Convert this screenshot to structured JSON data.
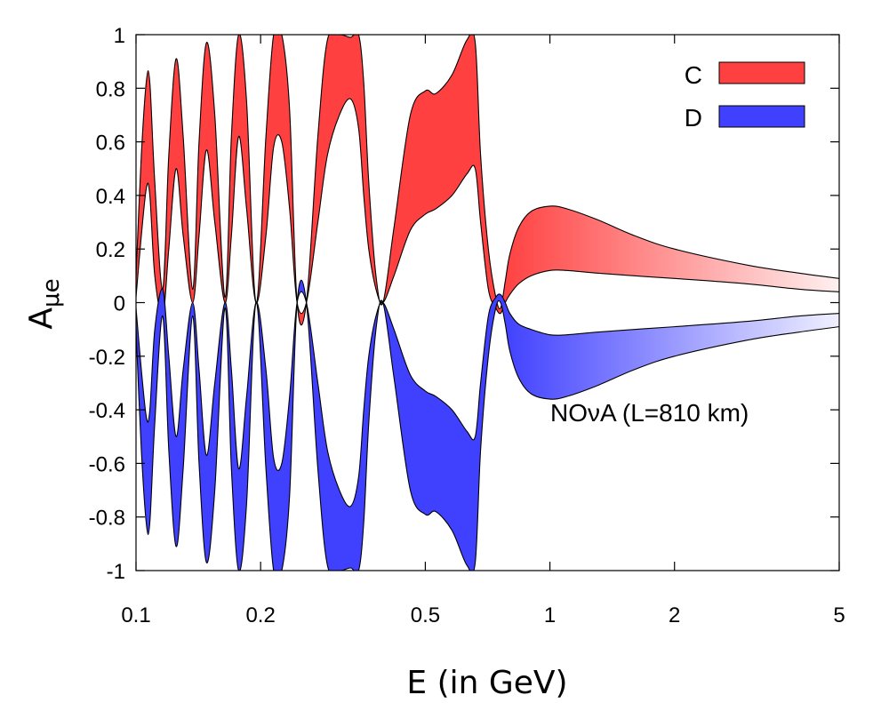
{
  "chart_data": {
    "type": "area",
    "xlabel": "E (in GeV)",
    "ylabel_main": "A",
    "ylabel_sub": "μe",
    "xscale": "log",
    "xlim": [
      0.1,
      5
    ],
    "ylim": [
      -1,
      1
    ],
    "xticks": [
      {
        "value": 0.1,
        "label": "0.1"
      },
      {
        "value": 0.2,
        "label": "0.2"
      },
      {
        "value": 0.5,
        "label": "0.5"
      },
      {
        "value": 1,
        "label": "1"
      },
      {
        "value": 2,
        "label": "2"
      },
      {
        "value": 5,
        "label": "5"
      }
    ],
    "yticks": [
      {
        "value": 1,
        "label": "1"
      },
      {
        "value": 0.8,
        "label": "0.8"
      },
      {
        "value": 0.6,
        "label": "0.6"
      },
      {
        "value": 0.4,
        "label": "0.4"
      },
      {
        "value": 0.2,
        "label": "0.2"
      },
      {
        "value": 0,
        "label": "0"
      },
      {
        "value": -0.2,
        "label": "-0.2"
      },
      {
        "value": -0.4,
        "label": "-0.4"
      },
      {
        "value": -0.6,
        "label": "-0.6"
      },
      {
        "value": -0.8,
        "label": "-0.8"
      },
      {
        "value": -1,
        "label": "-1"
      }
    ],
    "grid": false,
    "legend_position": "top-right",
    "annotation": "NOνA (L=810 km)",
    "series": [
      {
        "name": "C",
        "color": "#ff4040",
        "x": [
          0.1,
          0.103,
          0.106,
          0.108,
          0.111,
          0.116,
          0.12,
          0.125,
          0.13,
          0.137,
          0.142,
          0.148,
          0.155,
          0.164,
          0.17,
          0.177,
          0.185,
          0.195,
          0.206,
          0.215,
          0.225,
          0.235,
          0.245,
          0.258,
          0.275,
          0.29,
          0.31,
          0.33,
          0.345,
          0.355,
          0.365,
          0.38,
          0.395,
          0.42,
          0.46,
          0.5,
          0.53,
          0.58,
          0.63,
          0.66,
          0.68,
          0.71,
          0.74,
          0.76,
          0.78,
          0.8,
          0.84,
          0.9,
          1.0,
          1.1,
          1.3,
          1.6,
          2.0,
          3.0,
          4.0,
          5.0
        ],
        "upper": [
          0.1,
          0.55,
          0.83,
          0.82,
          0.45,
          0.05,
          0.55,
          0.91,
          0.62,
          0.05,
          0.6,
          0.97,
          0.7,
          0.02,
          0.62,
          1.0,
          0.75,
          0.0,
          0.62,
          1.0,
          1.0,
          0.72,
          0.0,
          0.0,
          0.62,
          0.98,
          1.0,
          0.99,
          1.0,
          0.82,
          0.45,
          0.1,
          0.0,
          0.28,
          0.7,
          0.79,
          0.78,
          0.85,
          0.98,
          0.97,
          0.55,
          0.2,
          0.02,
          -0.02,
          0.08,
          0.18,
          0.28,
          0.34,
          0.36,
          0.35,
          0.31,
          0.25,
          0.2,
          0.14,
          0.11,
          0.09
        ],
        "lower": [
          0.02,
          0.25,
          0.43,
          0.4,
          0.1,
          -0.05,
          0.2,
          0.5,
          0.25,
          0.0,
          0.25,
          0.57,
          0.3,
          0.0,
          0.25,
          0.62,
          0.35,
          0.0,
          0.25,
          0.58,
          0.6,
          0.35,
          0.0,
          0.0,
          0.3,
          0.55,
          0.7,
          0.76,
          0.65,
          0.4,
          0.2,
          0.05,
          0.0,
          0.1,
          0.27,
          0.33,
          0.35,
          0.4,
          0.48,
          0.5,
          0.3,
          0.05,
          -0.02,
          -0.04,
          0.0,
          0.03,
          0.07,
          0.1,
          0.12,
          0.12,
          0.11,
          0.1,
          0.09,
          0.07,
          0.05,
          0.04
        ]
      },
      {
        "name": "D",
        "color": "#4040ff",
        "x": [
          0.1,
          0.103,
          0.106,
          0.108,
          0.111,
          0.116,
          0.12,
          0.125,
          0.13,
          0.137,
          0.142,
          0.148,
          0.155,
          0.164,
          0.17,
          0.177,
          0.185,
          0.195,
          0.206,
          0.215,
          0.225,
          0.235,
          0.245,
          0.258,
          0.275,
          0.29,
          0.31,
          0.33,
          0.345,
          0.355,
          0.365,
          0.38,
          0.395,
          0.42,
          0.46,
          0.5,
          0.53,
          0.58,
          0.63,
          0.66,
          0.68,
          0.71,
          0.74,
          0.76,
          0.78,
          0.8,
          0.84,
          0.9,
          1.0,
          1.1,
          1.3,
          1.6,
          2.0,
          3.0,
          4.0,
          5.0
        ],
        "upper": [
          -0.02,
          -0.25,
          -0.43,
          -0.4,
          -0.1,
          0.05,
          -0.2,
          -0.5,
          -0.25,
          0.0,
          -0.25,
          -0.57,
          -0.3,
          0.0,
          -0.25,
          -0.62,
          -0.35,
          0.0,
          -0.25,
          -0.58,
          -0.6,
          -0.35,
          0.0,
          0.0,
          -0.3,
          -0.55,
          -0.7,
          -0.76,
          -0.65,
          -0.4,
          -0.2,
          -0.05,
          0.0,
          -0.1,
          -0.27,
          -0.33,
          -0.35,
          -0.4,
          -0.48,
          -0.5,
          -0.3,
          -0.05,
          0.02,
          0.03,
          0.0,
          -0.04,
          -0.08,
          -0.1,
          -0.12,
          -0.12,
          -0.11,
          -0.1,
          -0.09,
          -0.07,
          -0.05,
          -0.04
        ],
        "lower": [
          -0.1,
          -0.55,
          -0.83,
          -0.82,
          -0.45,
          -0.05,
          -0.55,
          -0.91,
          -0.62,
          -0.05,
          -0.6,
          -0.97,
          -0.7,
          -0.02,
          -0.62,
          -1.0,
          -0.75,
          0.0,
          -0.62,
          -1.0,
          -1.0,
          -0.72,
          0.0,
          0.0,
          -0.62,
          -0.98,
          -1.0,
          -0.99,
          -1.0,
          -0.82,
          -0.45,
          -0.1,
          0.0,
          -0.28,
          -0.7,
          -0.79,
          -0.78,
          -0.85,
          -0.98,
          -0.97,
          -0.55,
          -0.2,
          -0.02,
          0.0,
          -0.08,
          -0.18,
          -0.28,
          -0.34,
          -0.36,
          -0.35,
          -0.31,
          -0.25,
          -0.2,
          -0.14,
          -0.11,
          -0.09
        ]
      }
    ]
  }
}
